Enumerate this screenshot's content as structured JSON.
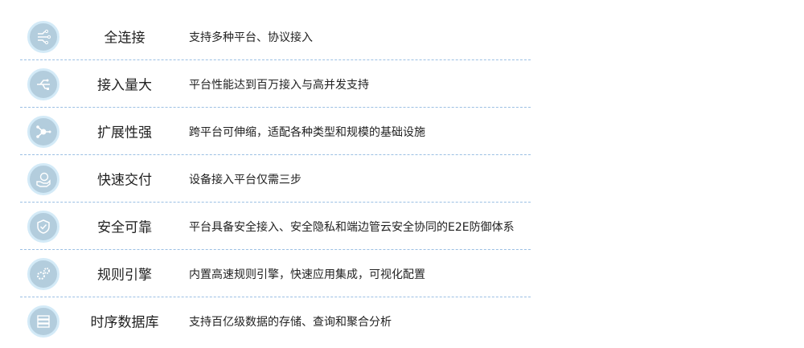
{
  "items": [
    {
      "icon": "connection-icon",
      "name": "全连接",
      "desc": "支持多种平台、协议接入"
    },
    {
      "icon": "usb-icon",
      "name": "接入量大",
      "desc": "平台性能达到百万接入与高并发支持"
    },
    {
      "icon": "network-node-icon",
      "name": "扩展性强",
      "desc": "跨平台可伸缩，适配各种类型和规模的基础设施"
    },
    {
      "icon": "delivery-hand-icon",
      "name": "快速交付",
      "desc": "设备接入平台仅需三步"
    },
    {
      "icon": "shield-check-icon",
      "name": "安全可靠",
      "desc": "平台具备安全接入、安全隐私和端边管云安全协同的E2E防御体系"
    },
    {
      "icon": "gears-icon",
      "name": "规则引擎",
      "desc": "内置高速规则引擎，快速应用集成，可视化配置"
    },
    {
      "icon": "database-icon",
      "name": "时序数据库",
      "desc": "支持百亿级数据的存储、查询和聚合分析"
    }
  ],
  "colors": {
    "icon_bg": "#b3cddd",
    "icon_ring": "#d3eaf7",
    "divider": "#9cc0e4"
  }
}
